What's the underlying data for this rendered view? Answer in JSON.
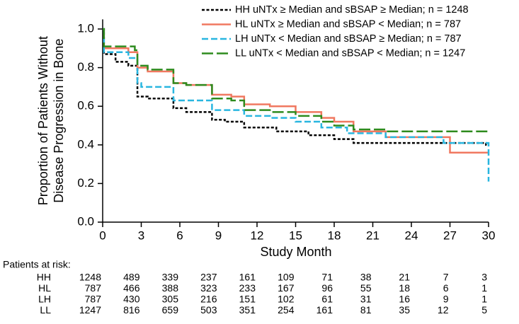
{
  "chart_data": {
    "type": "line",
    "drawstyle": "steps-post",
    "ylabel": [
      "Proportion of Patients Without",
      "Disease Progression in Bone"
    ],
    "xlabel": "Study Month",
    "xlim": [
      0,
      30
    ],
    "xticks": [
      0,
      3,
      6,
      9,
      12,
      15,
      18,
      21,
      24,
      27,
      30
    ],
    "ylim": [
      0,
      1.05
    ],
    "yticks": [
      {
        "value": 0,
        "label": "0.0"
      },
      {
        "value": 0.2,
        "label": "0.2"
      },
      {
        "value": 0.4,
        "label": "0.4"
      },
      {
        "value": 0.6,
        "label": "0.6"
      },
      {
        "value": 0.8,
        "label": "0.8"
      },
      {
        "value": 1,
        "label": "1.0"
      }
    ],
    "legend": "upper right",
    "series": [
      {
        "name": "HH uNTx ≥ Median and sBSAP ≥ Median; n = 1248",
        "color": "#000000",
        "dash": "dotted",
        "x": [
          0,
          0.1,
          1,
          2,
          2.7,
          3.5,
          5.5,
          6.5,
          8.5,
          9.5,
          11,
          13.5,
          16,
          18,
          19.5,
          29.8,
          30
        ],
        "values": [
          1.0,
          0.87,
          0.83,
          0.81,
          0.65,
          0.64,
          0.59,
          0.57,
          0.53,
          0.52,
          0.49,
          0.47,
          0.45,
          0.43,
          0.41,
          0.4,
          0.4
        ]
      },
      {
        "name": "HL uNTx ≥ Median and sBSAP < Median; n = 787",
        "color": "#f07860",
        "dash": "solid",
        "x": [
          0,
          0.1,
          2,
          2.7,
          3.5,
          5.5,
          6.5,
          8.5,
          10,
          11,
          13,
          15,
          17,
          18,
          19.5,
          22,
          27,
          30
        ],
        "values": [
          1.0,
          0.9,
          0.88,
          0.8,
          0.78,
          0.72,
          0.71,
          0.66,
          0.65,
          0.61,
          0.6,
          0.57,
          0.54,
          0.52,
          0.47,
          0.44,
          0.36,
          0.36
        ]
      },
      {
        "name": "LH uNTx < Median and sBSAP ≥ Median; n = 787",
        "color": "#29b6e0",
        "dash": "dashed",
        "x": [
          0,
          0.1,
          2,
          2.7,
          3,
          5.5,
          8.5,
          11,
          13,
          15,
          17,
          19,
          22,
          26.5,
          30
        ],
        "values": [
          1.0,
          0.88,
          0.85,
          0.72,
          0.7,
          0.63,
          0.58,
          0.55,
          0.54,
          0.52,
          0.49,
          0.46,
          0.44,
          0.41,
          0.21
        ]
      },
      {
        "name": "LL uNTx < Median and sBSAP < Median; n = 1247",
        "color": "#2e8b1e",
        "dash": "longdash",
        "x": [
          0,
          0.1,
          2.5,
          2.7,
          3.5,
          5.5,
          6.5,
          8.5,
          10,
          11,
          13,
          15,
          17,
          18,
          19.5,
          22,
          30
        ],
        "values": [
          1.0,
          0.91,
          0.89,
          0.81,
          0.79,
          0.72,
          0.71,
          0.64,
          0.63,
          0.58,
          0.57,
          0.55,
          0.52,
          0.5,
          0.48,
          0.47,
          0.47
        ]
      }
    ],
    "risk_table": {
      "title": "Patients at risk:",
      "rows": [
        {
          "label": "HH",
          "values": [
            1248,
            489,
            339,
            237,
            161,
            109,
            71,
            38,
            21,
            7,
            3
          ]
        },
        {
          "label": "HL",
          "values": [
            787,
            466,
            388,
            323,
            233,
            167,
            96,
            55,
            18,
            6,
            1
          ]
        },
        {
          "label": "LH",
          "values": [
            787,
            430,
            305,
            216,
            151,
            102,
            61,
            31,
            16,
            9,
            1
          ]
        },
        {
          "label": "LL",
          "values": [
            1247,
            816,
            659,
            503,
            351,
            254,
            161,
            81,
            35,
            12,
            5
          ]
        }
      ]
    }
  }
}
